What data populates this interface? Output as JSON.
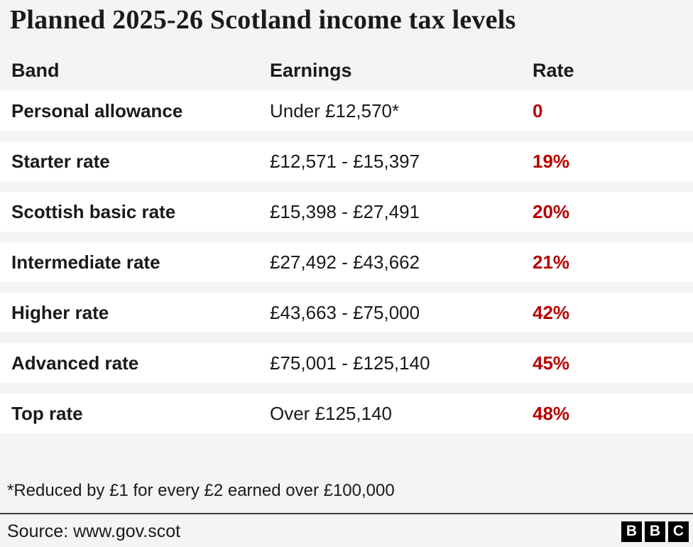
{
  "chart_data": {
    "type": "table",
    "title": "Planned 2025-26 Scotland income tax levels",
    "columns": [
      "Band",
      "Earnings",
      "Rate"
    ],
    "rows": [
      [
        "Personal allowance",
        "Under £12,570*",
        "0"
      ],
      [
        "Starter rate",
        "£12,571 - £15,397",
        "19%"
      ],
      [
        "Scottish basic rate",
        "£15,398 - £27,491",
        "20%"
      ],
      [
        "Intermediate rate",
        "£27,492 - £43,662",
        "21%"
      ],
      [
        "Higher rate",
        "£43,663 - £75,000",
        "42%"
      ],
      [
        "Advanced rate",
        "£75,001 - £125,140",
        "45%"
      ],
      [
        "Top rate",
        "Over £125,140",
        "48%"
      ]
    ],
    "footnote": "*Reduced by £1 for every £2 earned over £100,000",
    "source": "Source: www.gov.scot",
    "layout_hints": {
      "rate_column_color": "#b80000",
      "row_background": "#ffffff",
      "page_background": "#f4f4f4",
      "text_color": "#1a1a1a"
    }
  },
  "logo": {
    "letters": [
      "B",
      "B",
      "C"
    ]
  }
}
